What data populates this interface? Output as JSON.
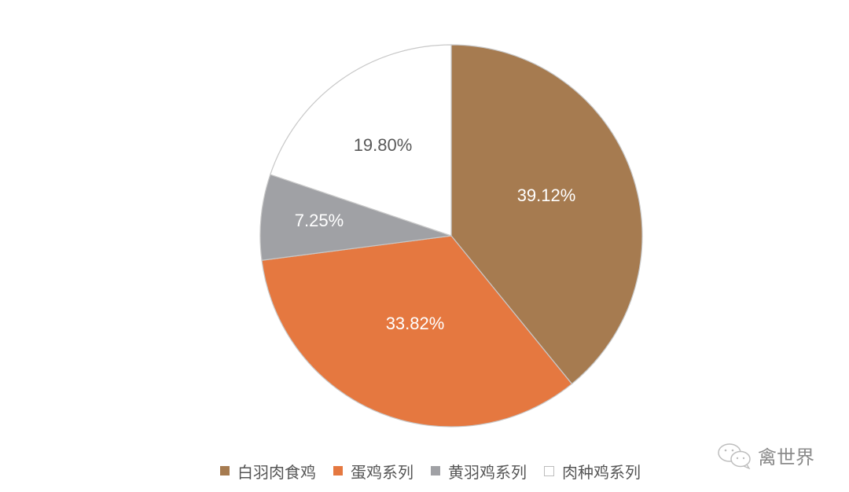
{
  "chart_data": {
    "type": "pie",
    "title": "",
    "categories": [
      "白羽肉食鸡",
      "蛋鸡系列",
      "黄羽鸡系列",
      "肉种鸡系列"
    ],
    "values": [
      39.12,
      33.82,
      7.25,
      19.8
    ],
    "labels": [
      "39.12%",
      "33.82%",
      "7.25%",
      "19.80%"
    ],
    "colors": [
      "#A67B50",
      "#E57840",
      "#A0A1A5",
      "#FFFFFF"
    ],
    "label_colors": [
      "#FFFFFF",
      "#FFFFFF",
      "#FFFFFF",
      "#595959"
    ],
    "start_angle_deg": 0,
    "direction": "clockwise",
    "legend_position": "bottom"
  },
  "legend": {
    "items": [
      {
        "label": "白羽肉食鸡",
        "color": "#A67B50"
      },
      {
        "label": "蛋鸡系列",
        "color": "#E57840"
      },
      {
        "label": "黄羽鸡系列",
        "color": "#A0A1A5"
      },
      {
        "label": "肉种鸡系列",
        "color": "#FFFFFF"
      }
    ]
  },
  "watermark": {
    "icon": "wechat-icon",
    "text": "禽世界"
  }
}
